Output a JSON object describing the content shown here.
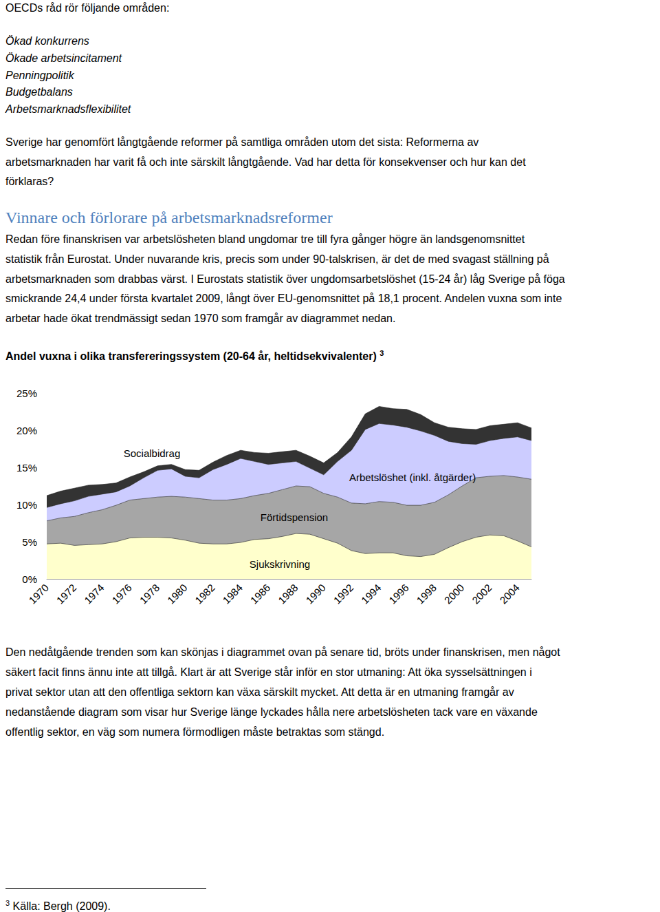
{
  "document": {
    "intro": "OECDs råd rör följande områden:",
    "list": [
      "Ökad konkurrens",
      "Ökade arbetsincitament",
      "Penningpolitik",
      "Budgetbalans",
      "Arbetsmarknadsflexibilitet"
    ],
    "paragraph1": [
      "Sverige har genomfört långtgående reformer på samtliga områden utom det sista: Reformerna av",
      "arbetsmarknaden har varit få och inte särskilt långtgående. Vad har detta för konsekvenser och hur kan det",
      "förklaras?"
    ],
    "heading": "Vinnare och förlorare på arbetsmarknadsreformer",
    "paragraph2": [
      "Redan före finanskrisen var arbetslösheten bland ungdomar tre till fyra gånger högre än landsgenomsnittet",
      "statistik från Eurostat. Under nuvarande kris, precis som under 90-talskrisen, är det de med svagast ställning på",
      "arbetsmarknaden som drabbas värst. I Eurostats statistik över ungdomsarbetslöshet (15-24 år) låg Sverige på föga",
      "smickrande 24,4 under första kvartalet 2009, långt över EU-genomsnittet på 18,1 procent. Andelen vuxna som inte",
      "arbetar hade ökat trendmässigt sedan 1970 som framgår av diagrammet nedan."
    ],
    "chart_title": "Andel vuxna i olika transfereringssystem (20-64 år, heltidsekvivalenter)",
    "chart_title_note": "3",
    "paragraph3": [
      "Den nedåtgående trenden som kan skönjas i diagrammet ovan på senare tid, bröts under finanskrisen, men något",
      "säkert facit finns ännu inte att tillgå. Klart är att Sverige står inför en stor utmaning: Att öka sysselsättningen i",
      "privat sektor utan att den offentliga sektorn kan växa särskilt mycket. Att detta är en utmaning framgår av",
      "nedanstående diagram som visar hur Sverige länge lyckades hålla nere arbetslösheten tack vare en växande",
      "offentlig sektor, en väg som numera förmodligen måste betraktas som stängd."
    ],
    "footnote": {
      "mark": "3",
      "text": "Källa: Bergh (2009)."
    }
  },
  "chart_data": {
    "type": "area",
    "stacked": true,
    "grid": false,
    "categories": [
      "1970",
      null,
      "1972",
      null,
      "1974",
      null,
      "1976",
      null,
      "1978",
      null,
      "1980",
      null,
      "1982",
      null,
      "1984",
      null,
      "1986",
      null,
      "1988",
      null,
      "1990",
      null,
      "1992",
      null,
      "1994",
      null,
      "1996",
      null,
      "1998",
      null,
      "2000",
      null,
      "2002",
      null,
      "2004",
      null
    ],
    "ylim": [
      0,
      25
    ],
    "yticks": [
      {
        "value": 0,
        "label": "0%"
      },
      {
        "value": 5,
        "label": "5%"
      },
      {
        "value": 10,
        "label": "10%"
      },
      {
        "value": 15,
        "label": "15%"
      },
      {
        "value": 20,
        "label": "20%"
      },
      {
        "value": 25,
        "label": "25%"
      }
    ],
    "series": [
      {
        "name": "Sjukskrivning",
        "color": "#ffffcc",
        "values": [
          4.7,
          4.8,
          4.5,
          4.6,
          4.7,
          5.0,
          5.5,
          5.6,
          5.6,
          5.5,
          5.2,
          4.8,
          4.7,
          4.7,
          4.9,
          5.3,
          5.4,
          5.7,
          6.1,
          6.0,
          5.4,
          4.8,
          3.8,
          3.4,
          3.5,
          3.5,
          3.1,
          3.0,
          3.3,
          4.2,
          5.0,
          5.6,
          5.9,
          5.8,
          5.1,
          4.3
        ]
      },
      {
        "name": "Förtidspension",
        "color": "#a6a6a6",
        "values": [
          3.1,
          3.4,
          3.9,
          4.3,
          4.6,
          4.9,
          5.1,
          5.2,
          5.4,
          5.6,
          5.8,
          6.0,
          5.9,
          5.9,
          5.9,
          5.9,
          6.1,
          6.3,
          6.4,
          6.4,
          6.1,
          6.2,
          6.4,
          6.7,
          6.9,
          6.8,
          6.8,
          6.9,
          7.0,
          7.1,
          7.5,
          8.0,
          7.9,
          8.1,
          8.6,
          9.1
        ]
      },
      {
        "name": "Arbetslöshet (inkl. åtgärder)",
        "color": "#ccccff",
        "values": [
          1.8,
          1.9,
          2.1,
          2.2,
          2.1,
          1.8,
          1.9,
          2.8,
          3.6,
          3.7,
          2.8,
          2.8,
          4.1,
          4.8,
          5.4,
          4.6,
          3.9,
          3.6,
          3.3,
          2.5,
          2.5,
          4.8,
          7.1,
          10.0,
          10.5,
          10.4,
          10.5,
          10.0,
          9.0,
          7.2,
          5.7,
          4.5,
          4.8,
          5.0,
          5.4,
          5.2
        ]
      },
      {
        "name": "Socialbidrag",
        "color": "#333333",
        "values": [
          1.6,
          1.7,
          1.7,
          1.5,
          1.3,
          1.2,
          1.2,
          0.8,
          0.6,
          0.6,
          0.9,
          1.0,
          1.0,
          1.2,
          1.1,
          1.2,
          1.5,
          1.5,
          1.5,
          1.6,
          1.6,
          1.2,
          1.8,
          2.1,
          2.3,
          2.2,
          2.4,
          2.2,
          1.7,
          1.9,
          2.0,
          2.0,
          2.0,
          1.9,
          1.9,
          1.7
        ]
      }
    ]
  }
}
